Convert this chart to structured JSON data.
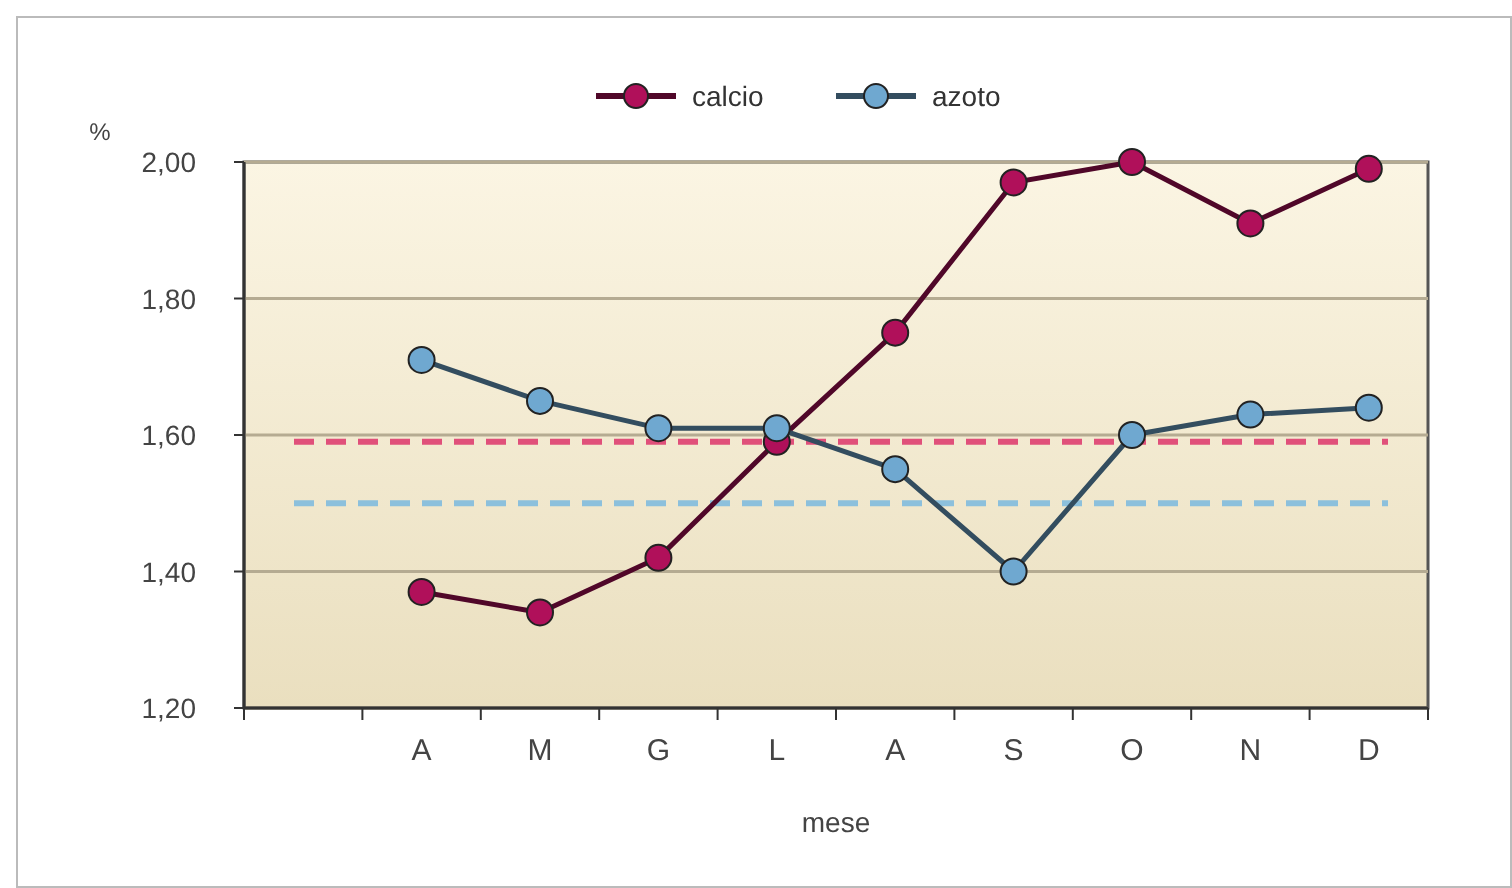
{
  "chart_data": {
    "type": "line",
    "ylabel": "%",
    "xlabel": "mese",
    "categories": [
      null,
      "A",
      "M",
      "G",
      "L",
      "A",
      "S",
      "O",
      "N",
      "D"
    ],
    "series": [
      {
        "name": "calcio",
        "color": "#b0105a",
        "values": [
          null,
          1.37,
          1.34,
          1.42,
          1.59,
          1.75,
          1.97,
          2.0,
          1.91,
          1.99
        ]
      },
      {
        "name": "azoto",
        "color": "#6fa8d0",
        "values": [
          null,
          1.71,
          1.65,
          1.61,
          1.61,
          1.55,
          1.4,
          1.6,
          1.63,
          1.64
        ]
      }
    ],
    "ylim": [
      1.2,
      2.0
    ],
    "yticks": [
      {
        "value": 1.2,
        "label": "1,20"
      },
      {
        "value": 1.4,
        "label": "1,40"
      },
      {
        "value": 1.6,
        "label": "1,60"
      },
      {
        "value": 1.8,
        "label": "1,80"
      },
      {
        "value": 2.0,
        "label": "2,00"
      }
    ],
    "ref_lines": [
      {
        "axis": "y",
        "value": 1.59,
        "color": "#e0507a",
        "line_style": "dashed"
      },
      {
        "axis": "y",
        "value": 1.5,
        "color": "#8cc0dc",
        "line_style": "dashed"
      }
    ],
    "grid": "y",
    "legend": "top",
    "marker": "circle",
    "line_style": "solid"
  }
}
